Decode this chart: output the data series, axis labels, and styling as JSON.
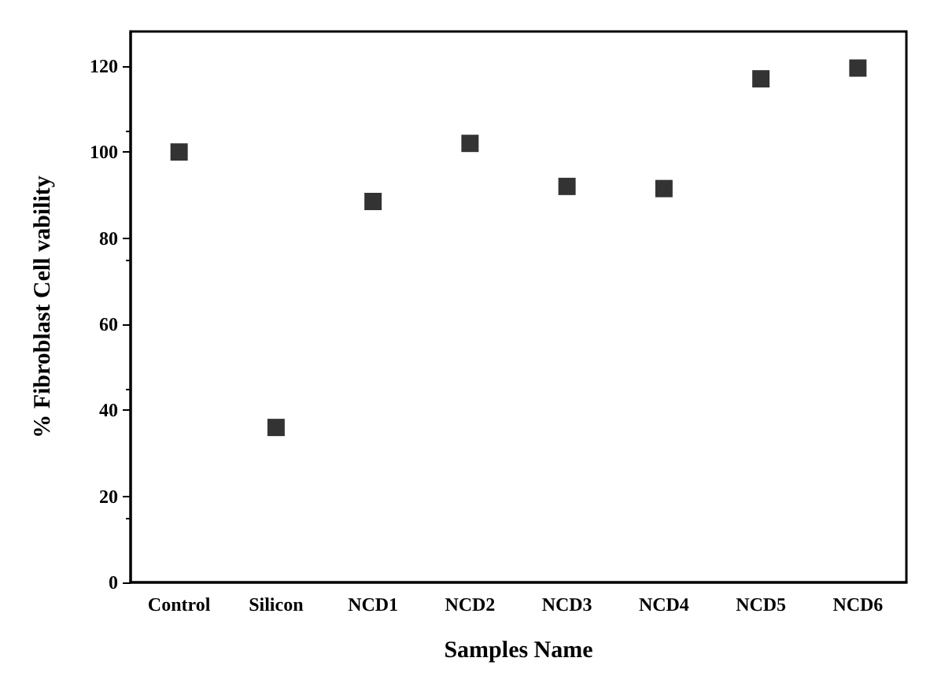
{
  "chart_data": {
    "type": "scatter",
    "xlabel": "Samples Name",
    "ylabel": "% Fibroblast Cell vability",
    "categories": [
      "Control",
      "Silicon",
      "NCD1",
      "NCD2",
      "NCD3",
      "NCD4",
      "NCD5",
      "NCD6"
    ],
    "values": [
      100,
      36,
      88.5,
      102,
      92,
      91.5,
      117,
      119.5
    ],
    "color": "#000000",
    "marker": "square",
    "ylim": [
      0,
      128
    ],
    "yticks": [
      0,
      20,
      40,
      60,
      80,
      100,
      120
    ],
    "grid": false
  }
}
